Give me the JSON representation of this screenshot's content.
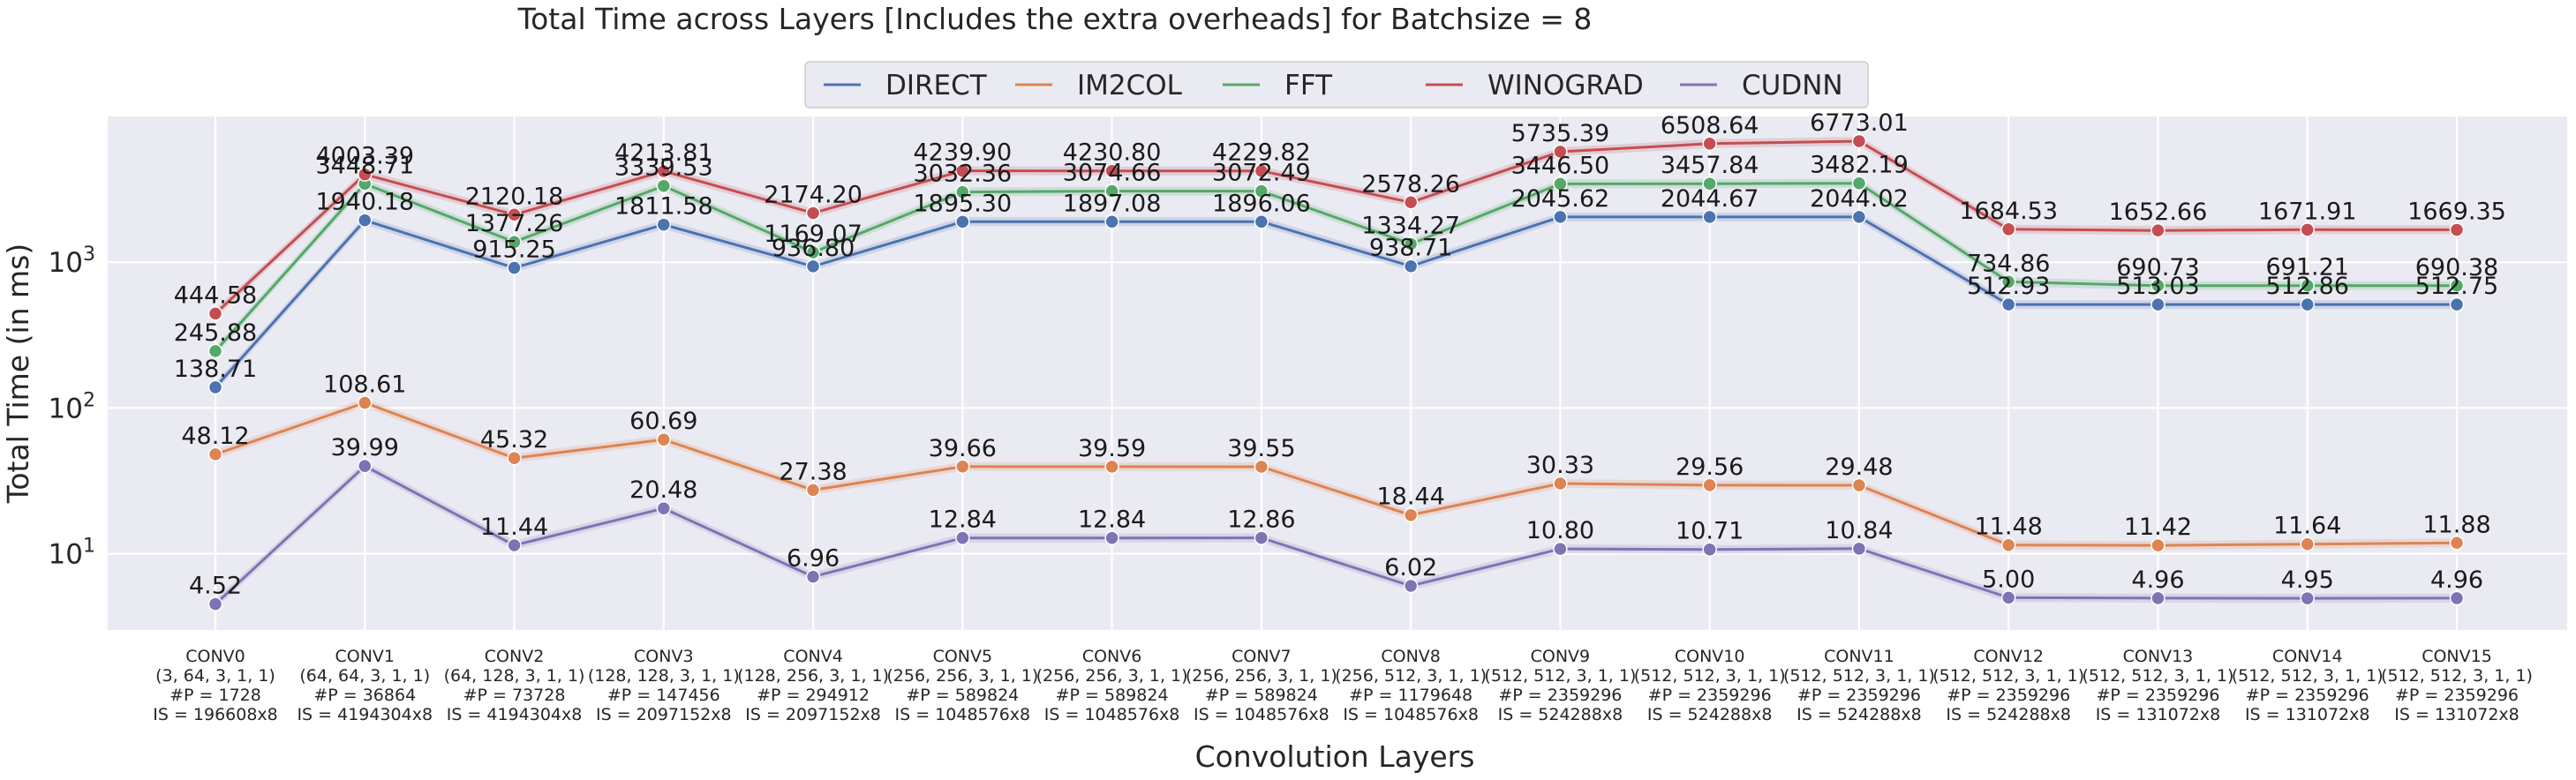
{
  "chart_data": {
    "type": "line",
    "title": "Total Time across Layers [Includes the extra overheads]  for Batchsize = 8",
    "xlabel": "Convolution Layers",
    "ylabel": "Total Time (in ms)",
    "yscale": "log",
    "ylim": [
      3,
      10000
    ],
    "yticks": [
      {
        "value": 10,
        "label": "10",
        "sup": "1"
      },
      {
        "value": 100,
        "label": "10",
        "sup": "2"
      },
      {
        "value": 1000,
        "label": "10",
        "sup": "3"
      }
    ],
    "grid": true,
    "legend_position": "top-center",
    "categories": [
      [
        "CONV0",
        "(3, 64, 3, 1, 1)",
        "#P = 1728",
        "IS = 196608x8"
      ],
      [
        "CONV1",
        "(64, 64, 3, 1, 1)",
        "#P = 36864",
        "IS = 4194304x8"
      ],
      [
        "CONV2",
        "(64, 128, 3, 1, 1)",
        "#P = 73728",
        "IS = 4194304x8"
      ],
      [
        "CONV3",
        "(128, 128, 3, 1, 1)",
        "#P = 147456",
        "IS = 2097152x8"
      ],
      [
        "CONV4",
        "(128, 256, 3, 1, 1)",
        "#P = 294912",
        "IS = 2097152x8"
      ],
      [
        "CONV5",
        "(256, 256, 3, 1, 1)",
        "#P = 589824",
        "IS = 1048576x8"
      ],
      [
        "CONV6",
        "(256, 256, 3, 1, 1)",
        "#P = 589824",
        "IS = 1048576x8"
      ],
      [
        "CONV7",
        "(256, 256, 3, 1, 1)",
        "#P = 589824",
        "IS = 1048576x8"
      ],
      [
        "CONV8",
        "(256, 512, 3, 1, 1)",
        "#P = 1179648",
        "IS = 1048576x8"
      ],
      [
        "CONV9",
        "(512, 512, 3, 1, 1)",
        "#P = 2359296",
        "IS = 524288x8"
      ],
      [
        "CONV10",
        "(512, 512, 3, 1, 1)",
        "#P = 2359296",
        "IS = 524288x8"
      ],
      [
        "CONV11",
        "(512, 512, 3, 1, 1)",
        "#P = 2359296",
        "IS = 524288x8"
      ],
      [
        "CONV12",
        "(512, 512, 3, 1, 1)",
        "#P = 2359296",
        "IS = 524288x8"
      ],
      [
        "CONV13",
        "(512, 512, 3, 1, 1)",
        "#P = 2359296",
        "IS = 131072x8"
      ],
      [
        "CONV14",
        "(512, 512, 3, 1, 1)",
        "#P = 2359296",
        "IS = 131072x8"
      ],
      [
        "CONV15",
        "(512, 512, 3, 1, 1)",
        "#P = 2359296",
        "IS = 131072x8"
      ]
    ],
    "series": [
      {
        "name": "DIRECT",
        "color": "#4c72b0",
        "values": [
          138.71,
          1940.18,
          915.25,
          1811.58,
          936.8,
          1895.3,
          1897.08,
          1896.06,
          938.71,
          2045.62,
          2044.67,
          2044.02,
          512.93,
          513.03,
          512.86,
          512.75
        ],
        "labels": [
          "138.71",
          "1940.18",
          "915.25",
          "1811.58",
          "936.80",
          "1895.30",
          "1897.08",
          "1896.06",
          "938.71",
          "2045.62",
          "2044.67",
          "2044.02",
          "512.93",
          "513.03",
          "512.86",
          "512.75"
        ]
      },
      {
        "name": "IM2COL",
        "color": "#dd8452",
        "values": [
          48.12,
          108.61,
          45.32,
          60.69,
          27.38,
          39.66,
          39.59,
          39.55,
          18.44,
          30.33,
          29.56,
          29.48,
          11.48,
          11.42,
          11.64,
          11.88
        ],
        "labels": [
          "48.12",
          "108.61",
          "45.32",
          "60.69",
          "27.38",
          "39.66",
          "39.59",
          "39.55",
          "18.44",
          "30.33",
          "29.56",
          "29.48",
          "11.48",
          "11.42",
          "11.64",
          "11.88"
        ]
      },
      {
        "name": "FFT",
        "color": "#55a868",
        "values": [
          245.88,
          3448.71,
          1377.26,
          3339.53,
          1169.07,
          3032.36,
          3074.66,
          3072.49,
          1334.27,
          3446.5,
          3457.84,
          3482.19,
          734.86,
          690.73,
          691.21,
          690.38
        ],
        "labels": [
          "245.88",
          "3448.71",
          "1377.26",
          "3339.53",
          "1169.07",
          "3032.36",
          "3074.66",
          "3072.49",
          "1334.27",
          "3446.50",
          "3457.84",
          "3482.19",
          "734.86",
          "690.73",
          "691.21",
          "690.38"
        ]
      },
      {
        "name": "WINOGRAD",
        "color": "#c44e52",
        "values": [
          444.58,
          4003.39,
          2120.18,
          4213.81,
          2174.2,
          4239.9,
          4230.8,
          4229.82,
          2578.26,
          5735.39,
          6508.64,
          6773.01,
          1684.53,
          1652.66,
          1671.91,
          1669.35
        ],
        "labels": [
          "444.58",
          "4003.39",
          "2120.18",
          "4213.81",
          "2174.20",
          "4239.90",
          "4230.80",
          "4229.82",
          "2578.26",
          "5735.39",
          "6508.64",
          "6773.01",
          "1684.53",
          "1652.66",
          "1671.91",
          "1669.35"
        ]
      },
      {
        "name": "CUDNN",
        "color": "#8172b3",
        "values": [
          4.52,
          39.99,
          11.44,
          20.48,
          6.96,
          12.84,
          12.84,
          12.86,
          6.02,
          10.8,
          10.71,
          10.84,
          5.0,
          4.96,
          4.95,
          4.96
        ],
        "labels": [
          "4.52",
          "39.99",
          "11.44",
          "20.48",
          "6.96",
          "12.84",
          "12.84",
          "12.86",
          "6.02",
          "10.80",
          "10.71",
          "10.84",
          "5.00",
          "4.96",
          "4.95",
          "4.96"
        ]
      }
    ],
    "label_order": [
      "IM2COL",
      "CUDNN",
      "DIRECT",
      "FFT",
      "WINOGRAD"
    ]
  }
}
